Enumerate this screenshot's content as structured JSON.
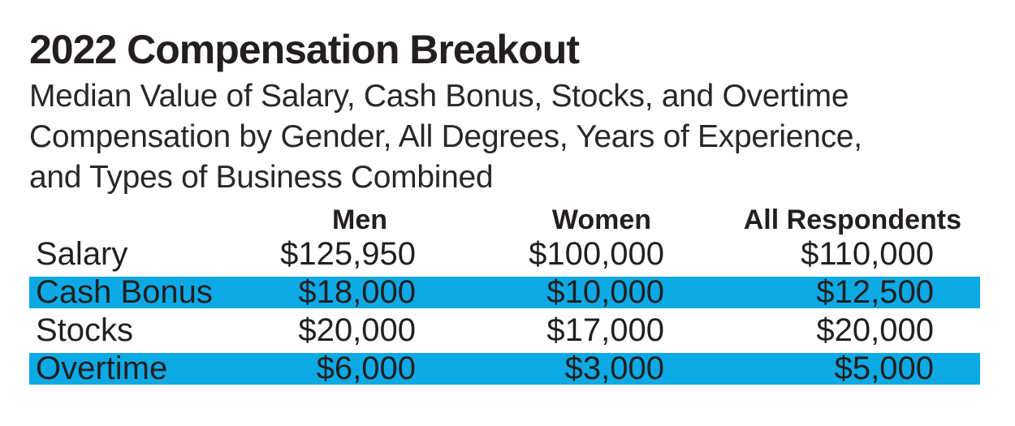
{
  "title": "2022 Compensation Breakout",
  "subtitle_lines": [
    "Median Value of Salary, Cash Bonus, Stocks, and Overtime",
    "Compensation by Gender, All Degrees, Years of Experience,",
    "and Types of Business Combined"
  ],
  "table": {
    "columns": [
      "Men",
      "Women",
      "All Respondents"
    ],
    "rows": [
      {
        "label": "Salary",
        "men": "$125,950",
        "women": "$100,000",
        "all": "$110,000",
        "highlighted": false
      },
      {
        "label": "Cash Bonus",
        "men": "$18,000",
        "women": "$10,000",
        "all": "$12,500",
        "highlighted": true
      },
      {
        "label": "Stocks",
        "men": "$20,000",
        "women": "$17,000",
        "all": "$20,000",
        "highlighted": false
      },
      {
        "label": "Overtime",
        "men": "$6,000",
        "women": "$3,000",
        "all": "$5,000",
        "highlighted": true
      }
    ]
  },
  "colors": {
    "highlight": "#0DA9E4",
    "text": "#231F20"
  },
  "chart_data": {
    "type": "table",
    "title": "2022 Compensation Breakout",
    "subtitle": "Median Value of Salary, Cash Bonus, Stocks, and Overtime Compensation by Gender, All Degrees, Years of Experience, and Types of Business Combined",
    "categories": [
      "Salary",
      "Cash Bonus",
      "Stocks",
      "Overtime"
    ],
    "series": [
      {
        "name": "Men",
        "values": [
          125950,
          18000,
          20000,
          6000
        ]
      },
      {
        "name": "Women",
        "values": [
          100000,
          10000,
          17000,
          3000
        ]
      },
      {
        "name": "All Respondents",
        "values": [
          110000,
          12500,
          20000,
          5000
        ]
      }
    ],
    "highlighted_rows": [
      "Cash Bonus",
      "Overtime"
    ],
    "legend_position": "none",
    "grid": false
  }
}
